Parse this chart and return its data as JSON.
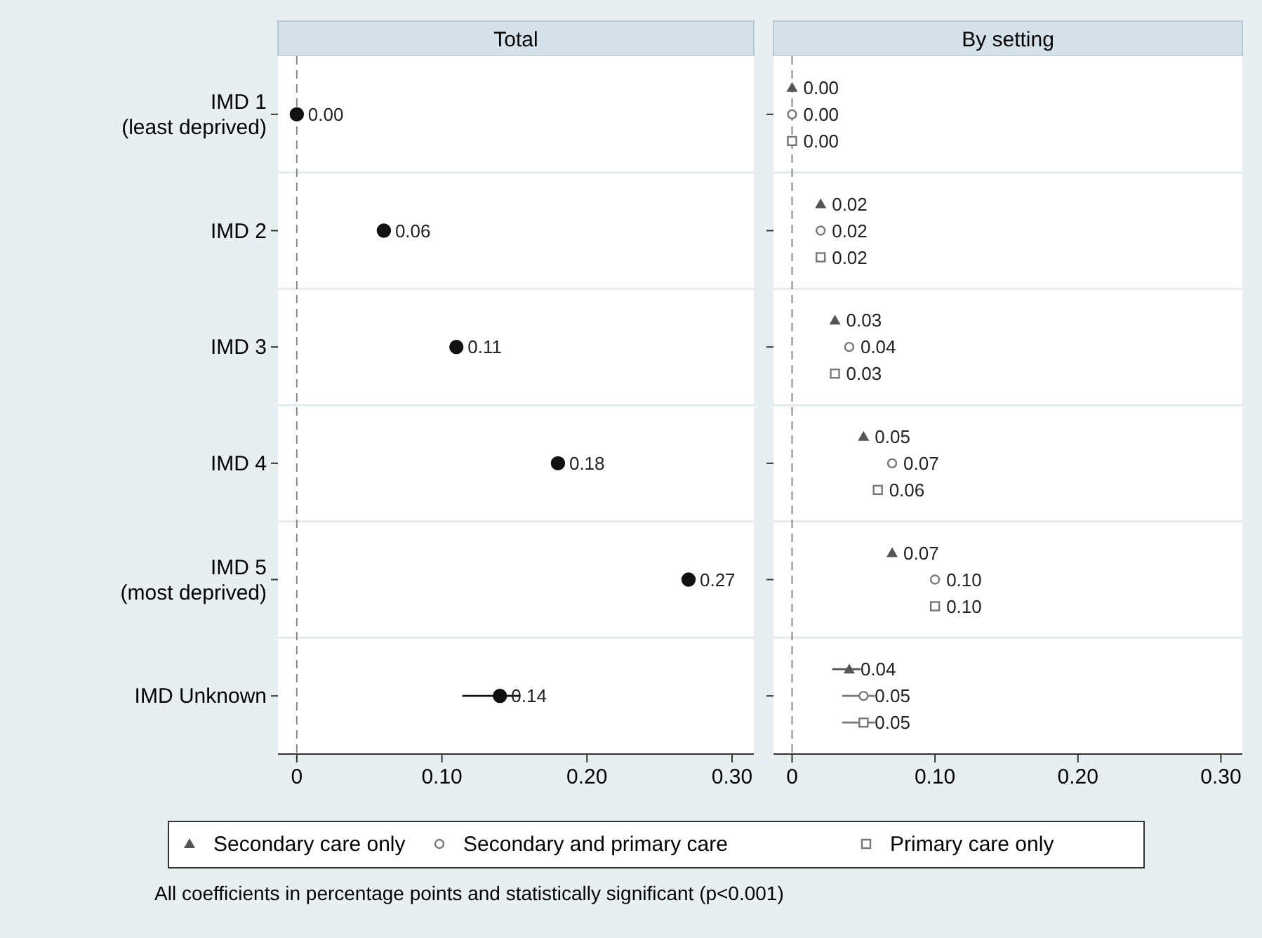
{
  "chart_data": [
    {
      "type": "scatter",
      "orientation": "horizontal",
      "title": "Total",
      "categories": [
        "IMD 1\n(least deprived)",
        "IMD 2",
        "IMD 3",
        "IMD 4",
        "IMD 5\n(most deprived)",
        "IMD Unknown"
      ],
      "series": [
        {
          "color": "#111111",
          "marker": "circle",
          "values": [
            0.0,
            0.06,
            0.11,
            0.18,
            0.27,
            0.14
          ],
          "errors": [
            null,
            null,
            null,
            null,
            null,
            [
              0.114,
              0.154
            ]
          ],
          "value_labels": [
            "0.00",
            "0.06",
            "0.11",
            "0.18",
            "0.27",
            "0.14"
          ]
        }
      ],
      "xlim": [
        -0.013,
        0.315
      ],
      "xticks": [
        {
          "value": 0,
          "label": "0"
        },
        {
          "value": 0.1,
          "label": "0.10"
        },
        {
          "value": 0.2,
          "label": "0.20"
        },
        {
          "value": 0.3,
          "label": "0.30"
        }
      ],
      "ref_lines": [
        {
          "axis": "x",
          "value": 0,
          "color": "#888888",
          "line_style": "dashed"
        }
      ],
      "grid": "y"
    },
    {
      "type": "scatter",
      "orientation": "horizontal",
      "title": "By setting",
      "categories": [
        null,
        null,
        null,
        null,
        null,
        null
      ],
      "series": [
        {
          "name": "Secondary care only",
          "color": "#555555",
          "marker": "triangle",
          "values": [
            0.0,
            0.02,
            0.03,
            0.05,
            0.07,
            0.04
          ],
          "errors": [
            null,
            null,
            null,
            null,
            null,
            [
              0.028,
              0.048
            ]
          ],
          "value_labels": [
            "0.00",
            "0.02",
            "0.03",
            "0.05",
            "0.07",
            "0.04"
          ]
        },
        {
          "name": "Secondary and primary care",
          "color": "#777777",
          "marker": "circle",
          "values": [
            0.0,
            0.02,
            0.04,
            0.07,
            0.1,
            0.05
          ],
          "errors": [
            null,
            null,
            null,
            null,
            null,
            [
              0.035,
              0.058
            ]
          ],
          "value_labels": [
            "0.00",
            "0.02",
            "0.04",
            "0.07",
            "0.10",
            "0.05"
          ]
        },
        {
          "name": "Primary care only",
          "color": "#777777",
          "marker": "square",
          "values": [
            0.0,
            0.02,
            0.03,
            0.06,
            0.1,
            0.05
          ],
          "errors": [
            null,
            null,
            null,
            null,
            null,
            [
              0.035,
              0.058
            ]
          ],
          "value_labels": [
            "0.00",
            "0.02",
            "0.03",
            "0.06",
            "0.10",
            "0.05"
          ]
        }
      ],
      "xlim": [
        -0.013,
        0.315
      ],
      "xticks": [
        {
          "value": 0,
          "label": "0"
        },
        {
          "value": 0.1,
          "label": "0.10"
        },
        {
          "value": 0.2,
          "label": "0.20"
        },
        {
          "value": 0.3,
          "label": "0.30"
        }
      ],
      "ref_lines": [
        {
          "axis": "x",
          "value": 0,
          "color": "#888888",
          "line_style": "dashed"
        }
      ],
      "grid": "y",
      "tick_labels": "x",
      "legend": "bottom",
      "annotations": [
        "All coefficients in percentage points and statistically significant (p<0.001)"
      ]
    }
  ]
}
